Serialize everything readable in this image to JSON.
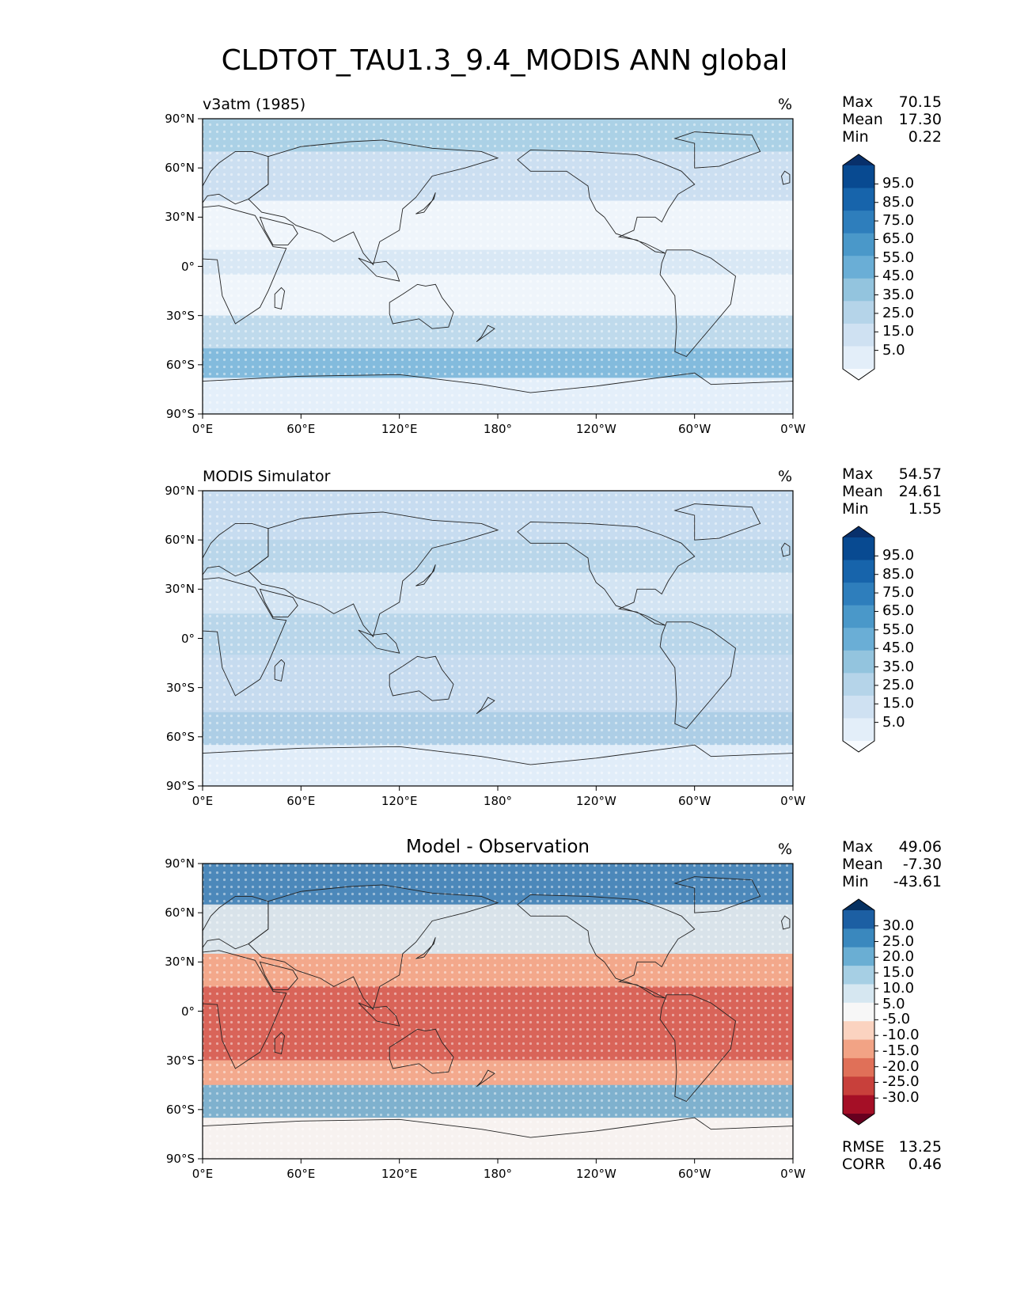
{
  "figure": {
    "title": "CLDTOT_TAU1.3_9.4_MODIS ANN global",
    "lat_labels": [
      "90°N",
      "60°N",
      "30°N",
      "0°",
      "30°S",
      "60°S",
      "90°S"
    ],
    "lon_labels": [
      "0°E",
      "60°E",
      "120°E",
      "180°",
      "120°W",
      "60°W",
      "0°W"
    ]
  },
  "panels": [
    {
      "title_left": "v3atm (1985)",
      "title_center": "",
      "units": "%",
      "stats": [
        {
          "label": "Max",
          "value": "70.15"
        },
        {
          "label": "Mean",
          "value": "17.30"
        },
        {
          "label": "Min",
          "value": "0.22"
        }
      ],
      "extra_stats": [],
      "colorbar": {
        "labels": [
          "95.0",
          "85.0",
          "75.0",
          "65.0",
          "55.0",
          "45.0",
          "35.0",
          "25.0",
          "15.0",
          "5.0"
        ],
        "colors": [
          "#f7fbff",
          "#e3eef9",
          "#cfe1f2",
          "#b5d4e9",
          "#93c4de",
          "#6aaed6",
          "#4a98c9",
          "#2e7ebc",
          "#1764ab",
          "#084a91",
          "#08306b"
        ]
      },
      "field": {
        "type": "sequential",
        "base_color": "#e3eef9",
        "accent_color": "#6aaed6"
      }
    },
    {
      "title_left": "MODIS Simulator",
      "title_center": "",
      "units": "%",
      "stats": [
        {
          "label": "Max",
          "value": "54.57"
        },
        {
          "label": "Mean",
          "value": "24.61"
        },
        {
          "label": "Min",
          "value": "1.55"
        }
      ],
      "extra_stats": [],
      "colorbar": {
        "labels": [
          "95.0",
          "85.0",
          "75.0",
          "65.0",
          "55.0",
          "45.0",
          "35.0",
          "25.0",
          "15.0",
          "5.0"
        ],
        "colors": [
          "#f7fbff",
          "#e3eef9",
          "#cfe1f2",
          "#b5d4e9",
          "#93c4de",
          "#6aaed6",
          "#4a98c9",
          "#2e7ebc",
          "#1764ab",
          "#084a91",
          "#08306b"
        ]
      },
      "field": {
        "type": "sequential",
        "base_color": "#c6dbef",
        "accent_color": "#93c4de"
      }
    },
    {
      "title_left": "",
      "title_center": "Model - Observation",
      "units": "%",
      "stats": [
        {
          "label": "Max",
          "value": "49.06"
        },
        {
          "label": "Mean",
          "value": "-7.30"
        },
        {
          "label": "Min",
          "value": "-43.61"
        }
      ],
      "extra_stats": [
        {
          "label": "RMSE",
          "value": "13.25"
        },
        {
          "label": "CORR",
          "value": "0.46"
        }
      ],
      "colorbar": {
        "labels": [
          "30.0",
          "25.0",
          "20.0",
          "15.0",
          "10.0",
          "5.0",
          "-5.0",
          "-10.0",
          "-15.0",
          "-20.0",
          "-25.0",
          "-30.0"
        ],
        "colors": [
          "#67001f",
          "#a50f26",
          "#c8403b",
          "#e07058",
          "#f2a385",
          "#fbd3c0",
          "#f7f7f7",
          "#d6e7f1",
          "#a6cfe4",
          "#6aaed3",
          "#3a88be",
          "#1c5fa3",
          "#053061"
        ]
      },
      "field": {
        "type": "diverging",
        "base_color": "#f4c4ad",
        "accent_color": "#d0443e"
      }
    }
  ]
}
